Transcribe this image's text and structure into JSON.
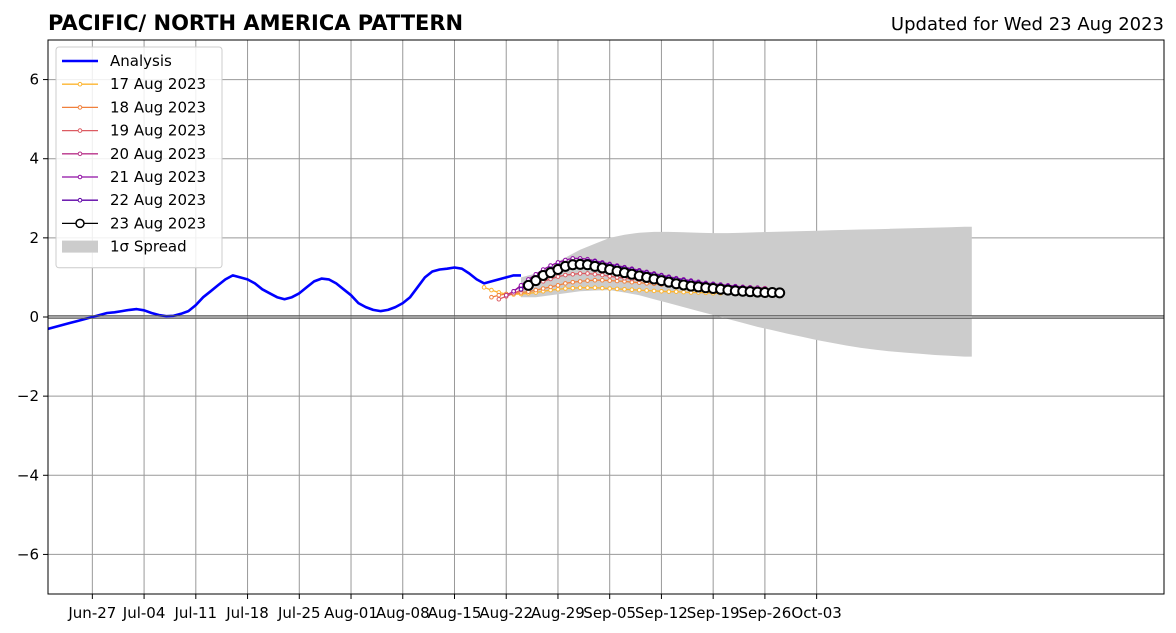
{
  "chart_data": {
    "type": "line",
    "title": "PACIFIC/ NORTH AMERICA PATTERN",
    "subtitle": "Updated for Wed 23 Aug 2023",
    "xlabel": "",
    "ylabel": "",
    "x_range_days": [
      -3,
      148
    ],
    "x_axis_start": "2023-06-24",
    "ylim": [
      -7,
      7
    ],
    "yticks": [
      -6,
      -4,
      -2,
      0,
      2,
      4,
      6
    ],
    "ytick_labels": [
      "−6",
      "−4",
      "−2",
      "0",
      "2",
      "4",
      "6"
    ],
    "xticks_days": [
      3,
      10,
      17,
      24,
      31,
      38,
      45,
      52,
      59,
      66,
      73,
      80,
      87,
      94,
      101
    ],
    "xtick_labels": [
      "Jun-27",
      "Jul-04",
      "Jul-11",
      "Jul-18",
      "Jul-25",
      "Aug-01",
      "Aug-08",
      "Aug-15",
      "Aug-22",
      "Aug-29",
      "Sep-05",
      "Sep-12",
      "Sep-19",
      "Sep-26",
      "Oct-03"
    ],
    "grid": true,
    "legend_position": "top-left",
    "legend": [
      {
        "label": "Analysis",
        "color": "#0000ff",
        "style": "line"
      },
      {
        "label": "17 Aug 2023",
        "color": "#fdb42f",
        "style": "dot-line"
      },
      {
        "label": "18 Aug 2023",
        "color": "#f0803c",
        "style": "dot-line"
      },
      {
        "label": "19 Aug 2023",
        "color": "#dc5b62",
        "style": "dot-line"
      },
      {
        "label": "20 Aug 2023",
        "color": "#b83289",
        "style": "dot-line"
      },
      {
        "label": "21 Aug 2023",
        "color": "#8f0da4",
        "style": "dot-line"
      },
      {
        "label": "22 Aug 2023",
        "color": "#5c01a6",
        "style": "dot-line"
      },
      {
        "label": "23 Aug 2023",
        "color": "#000000",
        "style": "circle-line"
      },
      {
        "label": "1σ Spread",
        "color": "#cccccc",
        "style": "patch"
      }
    ],
    "analysis": {
      "name": "Analysis",
      "color": "#0000ff",
      "x_days": [
        -3,
        -2,
        -1,
        0,
        1,
        2,
        3,
        4,
        5,
        6,
        7,
        8,
        9,
        10,
        11,
        12,
        13,
        14,
        15,
        16,
        17,
        18,
        19,
        20,
        21,
        22,
        23,
        24,
        25,
        26,
        27,
        28,
        29,
        30,
        31,
        32,
        33,
        34,
        35,
        36,
        37,
        38,
        39,
        40,
        41,
        42,
        43,
        44,
        45,
        46,
        47,
        48,
        49,
        50,
        51,
        52,
        53,
        54,
        55,
        56,
        57,
        58,
        59,
        60,
        61
      ],
      "values": [
        -0.3,
        -0.25,
        -0.2,
        -0.15,
        -0.1,
        -0.05,
        0.0,
        0.05,
        0.1,
        0.12,
        0.15,
        0.18,
        0.2,
        0.17,
        0.1,
        0.05,
        0.02,
        0.03,
        0.08,
        0.15,
        0.3,
        0.5,
        0.65,
        0.8,
        0.95,
        1.05,
        1.0,
        0.95,
        0.85,
        0.7,
        0.6,
        0.5,
        0.45,
        0.5,
        0.6,
        0.75,
        0.9,
        0.97,
        0.95,
        0.85,
        0.7,
        0.55,
        0.35,
        0.25,
        0.18,
        0.15,
        0.18,
        0.25,
        0.35,
        0.5,
        0.75,
        1.0,
        1.15,
        1.2,
        1.22,
        1.25,
        1.22,
        1.1,
        0.95,
        0.85,
        0.9,
        0.95,
        1.0,
        1.05,
        1.05
      ]
    },
    "spread": {
      "name": "1σ Spread",
      "color": "#cccccc",
      "x_days": [
        61,
        63,
        65,
        67,
        69,
        71,
        73,
        75,
        77,
        79,
        81,
        83,
        85,
        87,
        89,
        91,
        93,
        95,
        97,
        99,
        101,
        103,
        105,
        107,
        109,
        111,
        113,
        115,
        117,
        119,
        121,
        122
      ],
      "upper": [
        1.0,
        1.1,
        1.3,
        1.5,
        1.7,
        1.85,
        2.0,
        2.08,
        2.13,
        2.15,
        2.15,
        2.14,
        2.13,
        2.12,
        2.12,
        2.13,
        2.14,
        2.15,
        2.16,
        2.17,
        2.18,
        2.19,
        2.2,
        2.21,
        2.22,
        2.23,
        2.24,
        2.25,
        2.26,
        2.27,
        2.28,
        2.28
      ],
      "lower": [
        0.5,
        0.5,
        0.55,
        0.6,
        0.65,
        0.67,
        0.68,
        0.62,
        0.55,
        0.45,
        0.35,
        0.25,
        0.15,
        0.05,
        -0.05,
        -0.15,
        -0.25,
        -0.33,
        -0.42,
        -0.5,
        -0.58,
        -0.65,
        -0.72,
        -0.78,
        -0.83,
        -0.87,
        -0.9,
        -0.93,
        -0.96,
        -0.98,
        -1.0,
        -1.0
      ]
    },
    "series": [
      {
        "name": "17 Aug 2023",
        "color": "#fdb42f",
        "marker": "dot",
        "start_day": 56,
        "values": [
          0.75,
          0.68,
          0.62,
          0.58,
          0.57,
          0.58,
          0.6,
          0.62,
          0.65,
          0.68,
          0.7,
          0.72,
          0.73,
          0.74,
          0.74,
          0.74,
          0.73,
          0.72,
          0.71,
          0.7,
          0.69,
          0.68,
          0.67,
          0.66,
          0.65,
          0.64,
          0.64,
          0.63,
          0.62,
          0.62,
          0.61,
          0.6,
          0.6,
          0.6,
          0.59,
          0.59,
          0.58,
          0.58,
          0.58
        ]
      },
      {
        "name": "18 Aug 2023",
        "color": "#f0803c",
        "marker": "dot",
        "start_day": 57,
        "values": [
          0.5,
          0.55,
          0.58,
          0.6,
          0.62,
          0.64,
          0.68,
          0.72,
          0.76,
          0.8,
          0.85,
          0.88,
          0.9,
          0.92,
          0.93,
          0.93,
          0.92,
          0.91,
          0.9,
          0.88,
          0.87,
          0.85,
          0.84,
          0.82,
          0.81,
          0.8,
          0.78,
          0.77,
          0.76,
          0.75,
          0.74,
          0.73,
          0.72,
          0.71,
          0.7,
          0.69,
          0.68,
          0.68
        ]
      },
      {
        "name": "19 Aug 2023",
        "color": "#dc5b62",
        "marker": "dot",
        "start_day": 58,
        "values": [
          0.45,
          0.52,
          0.6,
          0.68,
          0.76,
          0.84,
          0.9,
          0.96,
          1.02,
          1.06,
          1.08,
          1.1,
          1.1,
          1.08,
          1.06,
          1.03,
          1.0,
          0.98,
          0.96,
          0.94,
          0.92,
          0.9,
          0.88,
          0.86,
          0.85,
          0.84,
          0.83,
          0.82,
          0.81,
          0.8,
          0.79,
          0.78,
          0.77,
          0.76,
          0.75,
          0.74,
          0.73
        ]
      },
      {
        "name": "20 Aug 2023",
        "color": "#b83289",
        "marker": "dot",
        "start_day": 59,
        "values": [
          0.55,
          0.65,
          0.78,
          0.9,
          1.0,
          1.1,
          1.18,
          1.25,
          1.3,
          1.34,
          1.35,
          1.34,
          1.32,
          1.28,
          1.24,
          1.2,
          1.16,
          1.12,
          1.08,
          1.04,
          1.0,
          0.97,
          0.94,
          0.91,
          0.88,
          0.86,
          0.84,
          0.82,
          0.8,
          0.78,
          0.76,
          0.75,
          0.74,
          0.73,
          0.72,
          0.71
        ]
      },
      {
        "name": "21 Aug 2023",
        "color": "#8f0da4",
        "marker": "dot",
        "start_day": 60,
        "values": [
          0.65,
          0.8,
          0.95,
          1.08,
          1.2,
          1.3,
          1.38,
          1.44,
          1.48,
          1.48,
          1.46,
          1.42,
          1.38,
          1.34,
          1.3,
          1.26,
          1.22,
          1.18,
          1.14,
          1.1,
          1.06,
          1.02,
          0.98,
          0.95,
          0.92,
          0.89,
          0.86,
          0.84,
          0.82,
          0.8,
          0.78,
          0.76,
          0.75,
          0.74,
          0.72
        ]
      },
      {
        "name": "22 Aug 2023",
        "color": "#5c01a6",
        "marker": "dot",
        "start_day": 61,
        "values": [
          0.7,
          0.85,
          1.0,
          1.12,
          1.22,
          1.3,
          1.36,
          1.4,
          1.42,
          1.42,
          1.4,
          1.36,
          1.32,
          1.28,
          1.24,
          1.2,
          1.16,
          1.12,
          1.08,
          1.04,
          1.0,
          0.96,
          0.93,
          0.9,
          0.87,
          0.84,
          0.82,
          0.8,
          0.78,
          0.76,
          0.74,
          0.72,
          0.7,
          0.68
        ]
      },
      {
        "name": "23 Aug 2023",
        "color": "#000000",
        "marker": "circle",
        "start_day": 62,
        "values": [
          0.8,
          0.92,
          1.05,
          1.12,
          1.2,
          1.28,
          1.32,
          1.33,
          1.32,
          1.28,
          1.24,
          1.2,
          1.16,
          1.12,
          1.08,
          1.04,
          1.0,
          0.96,
          0.92,
          0.88,
          0.84,
          0.81,
          0.78,
          0.76,
          0.74,
          0.72,
          0.7,
          0.68,
          0.66,
          0.65,
          0.64,
          0.63,
          0.62,
          0.62,
          0.61
        ]
      }
    ]
  }
}
